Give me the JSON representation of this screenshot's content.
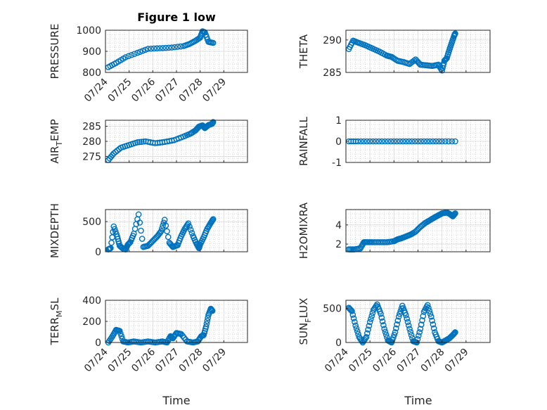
{
  "figure": {
    "title": "Figure 1 low"
  },
  "colors": {
    "marker": "#0072BD",
    "axis": "#262626",
    "grid": "#b8b8b8"
  },
  "chart_data": [
    {
      "type": "scatter",
      "ylabel_parts": [
        "PRESSURE"
      ],
      "ylim": [
        800,
        1000
      ],
      "yticks": [
        {
          "v": 800,
          "label": "800"
        },
        {
          "v": 900,
          "label": "900"
        },
        {
          "v": 1000,
          "label": "1000"
        }
      ],
      "xlim": [
        0,
        6
      ],
      "xticks": [
        "07/24",
        "07/25",
        "07/26",
        "07/27",
        "07/28",
        "07/29"
      ],
      "series": [
        {
          "x": [
            0.12,
            0.45,
            0.85,
            1.35,
            1.8,
            2.3,
            2.8,
            3.3,
            3.55,
            3.8,
            4.0,
            4.1,
            4.2,
            4.35,
            4.55
          ],
          "y": [
            825,
            845,
            872,
            893,
            912,
            915,
            918,
            925,
            935,
            950,
            965,
            995,
            990,
            945,
            940
          ]
        }
      ]
    },
    {
      "type": "scatter",
      "ylabel_parts": [
        "THETA"
      ],
      "ylim": [
        285,
        291.5
      ],
      "yticks": [
        {
          "v": 285,
          "label": "285"
        },
        {
          "v": 290,
          "label": "290"
        }
      ],
      "xlim": [
        0,
        6
      ],
      "xticks": [],
      "series": [
        {
          "x": [
            0.12,
            0.3,
            0.5,
            0.8,
            1.1,
            1.4,
            1.7,
            1.9,
            2.15,
            2.4,
            2.65,
            2.9,
            3.1,
            3.35,
            3.6,
            3.85,
            4.0,
            4.1,
            4.2,
            4.3,
            4.4,
            4.5,
            4.55
          ],
          "y": [
            288.6,
            289.9,
            289.6,
            289.2,
            288.7,
            288.2,
            287.6,
            287.4,
            286.8,
            286.6,
            286.3,
            287.0,
            286.2,
            286.1,
            286.0,
            286.2,
            285.3,
            286.8,
            287.2,
            288.4,
            289.5,
            290.6,
            291.0
          ]
        }
      ]
    },
    {
      "type": "scatter",
      "ylabel_parts": [
        "AIR",
        "T",
        "EMP"
      ],
      "ylim": [
        273,
        287
      ],
      "yticks": [
        {
          "v": 275,
          "label": "275"
        },
        {
          "v": 280,
          "label": "280"
        },
        {
          "v": 285,
          "label": "285"
        }
      ],
      "xlim": [
        0,
        6
      ],
      "xticks": [],
      "series": [
        {
          "x": [
            0.12,
            0.35,
            0.65,
            1.0,
            1.35,
            1.7,
            2.1,
            2.5,
            2.9,
            3.3,
            3.6,
            3.8,
            3.95,
            4.1,
            4.2,
            4.35,
            4.5,
            4.55
          ],
          "y": [
            273.8,
            276.0,
            277.9,
            278.8,
            279.7,
            280.0,
            279.4,
            279.8,
            280.4,
            281.6,
            282.6,
            283.6,
            284.9,
            285.3,
            284.4,
            285.4,
            285.8,
            286.4
          ]
        }
      ]
    },
    {
      "type": "scatter",
      "ylabel_parts": [
        "RAINFALL"
      ],
      "ylim": [
        -1,
        1
      ],
      "yticks": [
        {
          "v": -1,
          "label": "-1"
        },
        {
          "v": 0,
          "label": "0"
        },
        {
          "v": 1,
          "label": "1"
        }
      ],
      "xlim": [
        0,
        6
      ],
      "xticks": [],
      "series": [
        {
          "x": [
            0.12,
            0.5,
            1.0,
            1.5,
            2.0,
            2.5,
            3.0,
            3.5,
            4.0,
            4.55
          ],
          "y": [
            0,
            0,
            0,
            0,
            0,
            0,
            0,
            0,
            0,
            0
          ]
        }
      ]
    },
    {
      "type": "scatter",
      "ylabel_parts": [
        "MIXDEPTH"
      ],
      "ylim": [
        0,
        700
      ],
      "yticks": [
        {
          "v": 0,
          "label": "0"
        },
        {
          "v": 500,
          "label": "500"
        }
      ],
      "xlim": [
        0,
        6
      ],
      "xticks": [],
      "series": [
        {
          "x": [
            0.12,
            0.22,
            0.35,
            0.5,
            0.6,
            0.75,
            0.85,
            0.95,
            1.05,
            1.2,
            1.4,
            1.6,
            1.8,
            2.0,
            2.2,
            2.35,
            2.5,
            2.7,
            2.85,
            3.05,
            3.2,
            3.35,
            3.5,
            3.7,
            3.85,
            3.95,
            4.0,
            4.15,
            4.3,
            4.45,
            4.55
          ],
          "y": [
            40,
            60,
            420,
            250,
            100,
            50,
            40,
            120,
            160,
            300,
            620,
            80,
            100,
            180,
            260,
            340,
            530,
            150,
            80,
            110,
            260,
            380,
            470,
            260,
            130,
            60,
            120,
            240,
            380,
            480,
            540
          ]
        }
      ]
    },
    {
      "type": "scatter",
      "ylabel_parts": [
        "H2OMIXRA"
      ],
      "ylim": [
        1.2,
        5.6
      ],
      "yticks": [
        {
          "v": 2,
          "label": "2"
        },
        {
          "v": 4,
          "label": "4"
        }
      ],
      "xlim": [
        0,
        6
      ],
      "xticks": [],
      "series": [
        {
          "x": [
            0.12,
            0.35,
            0.6,
            0.75,
            0.9,
            1.1,
            1.4,
            1.7,
            2.0,
            2.15,
            2.3,
            2.5,
            2.7,
            2.9,
            3.1,
            3.3,
            3.5,
            3.7,
            3.85,
            4.0,
            4.2,
            4.35,
            4.45,
            4.55
          ],
          "y": [
            1.45,
            1.45,
            1.55,
            2.2,
            2.2,
            2.2,
            2.2,
            2.2,
            2.3,
            2.5,
            2.6,
            2.8,
            3.0,
            3.3,
            3.8,
            4.2,
            4.5,
            4.8,
            5.0,
            5.2,
            5.3,
            5.1,
            4.9,
            5.2
          ]
        }
      ]
    },
    {
      "type": "scatter",
      "ylabel_parts": [
        "TERR",
        "M",
        "SL"
      ],
      "ylim": [
        0,
        400
      ],
      "yticks": [
        {
          "v": 0,
          "label": "0"
        },
        {
          "v": 200,
          "label": "200"
        },
        {
          "v": 400,
          "label": "400"
        }
      ],
      "xlim": [
        0,
        6
      ],
      "xticks": [
        "07/24",
        "07/25",
        "07/26",
        "07/27",
        "07/28",
        "07/29"
      ],
      "series": [
        {
          "x": [
            0.12,
            0.3,
            0.45,
            0.6,
            0.75,
            0.95,
            1.2,
            1.5,
            1.8,
            2.1,
            2.4,
            2.6,
            2.75,
            2.85,
            3.0,
            3.2,
            3.45,
            3.7,
            3.9,
            4.05,
            4.15,
            4.25,
            4.35,
            4.45,
            4.52
          ],
          "y": [
            0,
            60,
            120,
            110,
            10,
            0,
            10,
            0,
            10,
            0,
            10,
            0,
            60,
            40,
            90,
            80,
            10,
            0,
            10,
            60,
            70,
            150,
            260,
            320,
            300
          ]
        }
      ]
    },
    {
      "type": "scatter",
      "ylabel_parts": [
        "SUN",
        "F",
        "LUX"
      ],
      "ylim": [
        0,
        620
      ],
      "yticks": [
        {
          "v": 0,
          "label": "0"
        },
        {
          "v": 500,
          "label": "500"
        }
      ],
      "xlim": [
        0,
        6
      ],
      "xticks": [
        "07/24",
        "07/25",
        "07/26",
        "07/27",
        "07/28",
        "07/29"
      ],
      "series": [
        {
          "x": [
            0.12,
            0.25,
            0.4,
            0.55,
            0.7,
            0.85,
            1.0,
            1.15,
            1.3,
            1.45,
            1.6,
            1.75,
            1.9,
            2.05,
            2.2,
            2.35,
            2.5,
            2.65,
            2.8,
            2.95,
            3.1,
            3.25,
            3.4,
            3.55,
            3.7,
            3.85,
            4.0,
            4.15,
            4.3,
            4.45,
            4.55
          ],
          "y": [
            510,
            460,
            250,
            80,
            0,
            80,
            300,
            480,
            560,
            420,
            200,
            30,
            0,
            150,
            380,
            540,
            400,
            200,
            20,
            0,
            200,
            450,
            550,
            380,
            150,
            20,
            0,
            30,
            60,
            110,
            150
          ]
        }
      ]
    }
  ],
  "xlabels": {
    "left": "Time",
    "right": "Time"
  }
}
